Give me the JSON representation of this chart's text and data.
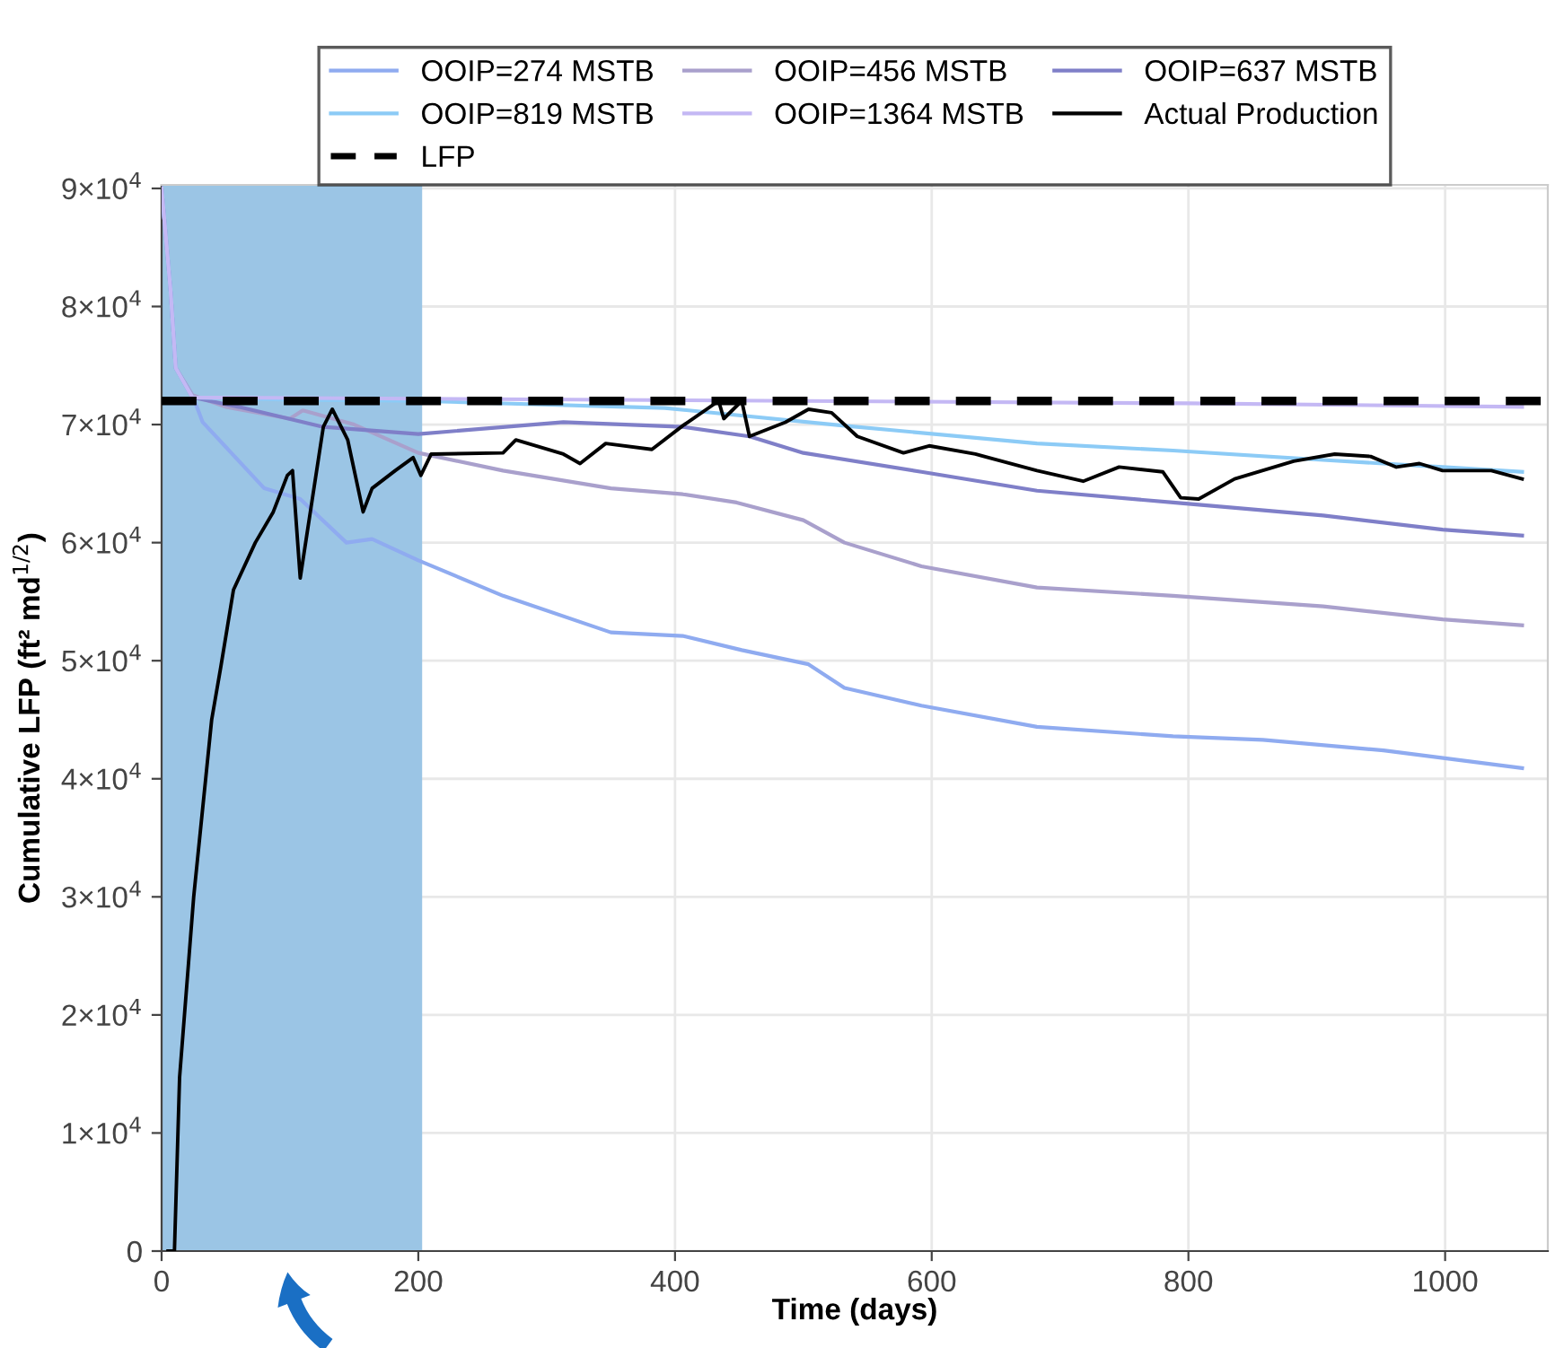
{
  "chart_data": {
    "type": "line",
    "xlabel": "Time (days)",
    "ylabel": "Cumulative LFP (ft² md$^{1/2}$)",
    "xlim": [
      0,
      1080
    ],
    "xticks": [
      0,
      200,
      400,
      600,
      800,
      1000
    ],
    "ylim": [
      0,
      90300
    ],
    "yticks": [
      0,
      {
        "value": 10000,
        "label": "1×10$^{4}$"
      },
      {
        "value": 20000,
        "label": "2×10$^{4}$"
      },
      {
        "value": 30000,
        "label": "3×10$^{4}$"
      },
      {
        "value": 40000,
        "label": "4×10$^{4}$"
      },
      {
        "value": 50000,
        "label": "5×10$^{4}$"
      },
      {
        "value": 60000,
        "label": "6×10$^{4}$"
      },
      {
        "value": 70000,
        "label": "7×10$^{4}$"
      },
      {
        "value": 80000,
        "label": "8×10$^{4}$"
      },
      {
        "value": 90000,
        "label": "9×10$^{4}$"
      }
    ],
    "grid": true,
    "legend": "top",
    "marker": "none",
    "line_style": "solid",
    "bands": [
      {
        "axis": "x",
        "from": 0,
        "to": 203,
        "color": "#9bc5e5"
      }
    ],
    "ref_lines": [
      {
        "axis": "y",
        "value": 72000,
        "label": "LFP",
        "color": "#000000",
        "line_style": "dashed"
      }
    ],
    "series": [
      {
        "name": "OOIP=274 MSTB",
        "color": "#8fabf0",
        "x": [
          0,
          7,
          11,
          24,
          32,
          80,
          108,
          144,
          164,
          200,
          266,
          350,
          406,
          452,
          504,
          532,
          592,
          682,
          788,
          858,
          952,
          1060
        ],
        "values": [
          90000,
          81300,
          74800,
          72500,
          70200,
          64600,
          63700,
          60000,
          60300,
          58500,
          55500,
          52400,
          52100,
          50900,
          49700,
          47700,
          46200,
          44400,
          43600,
          43300,
          42400,
          40900
        ]
      },
      {
        "name": "OOIP=456 MSTB",
        "color": "#a9a0cc",
        "x": [
          0,
          7,
          11,
          24,
          50,
          100,
          110,
          150,
          200,
          266,
          350,
          406,
          448,
          500,
          532,
          592,
          682,
          788,
          905,
          998,
          1060
        ],
        "values": [
          90000,
          81300,
          74800,
          72500,
          71500,
          70500,
          71200,
          70000,
          67600,
          66100,
          64600,
          64100,
          63400,
          61900,
          60000,
          58000,
          56200,
          55500,
          54600,
          53500,
          53000
        ]
      },
      {
        "name": "OOIP=637 MSTB",
        "color": "#7f7fc8",
        "x": [
          0,
          7,
          11,
          24,
          60,
          126,
          200,
          313,
          406,
          458,
          500,
          592,
          682,
          788,
          905,
          998,
          1060
        ],
        "values": [
          90000,
          81300,
          74800,
          72300,
          71500,
          69800,
          69200,
          70200,
          69800,
          69000,
          67600,
          66000,
          64400,
          63400,
          62300,
          61100,
          60600
        ]
      },
      {
        "name": "OOIP=819 MSTB",
        "color": "#8ccbf6",
        "x": [
          0,
          7,
          11,
          24,
          100,
          200,
          392,
          532,
          682,
          788,
          905,
          998,
          1060
        ],
        "values": [
          90000,
          81300,
          74800,
          72300,
          72100,
          72000,
          71400,
          69900,
          68400,
          67800,
          67000,
          66400,
          66000
        ]
      },
      {
        "name": "OOIP=1364 MSTB",
        "color": "#c4b8f4",
        "x": [
          0,
          7,
          11,
          24,
          500,
          800,
          1060
        ],
        "values": [
          90000,
          81300,
          74800,
          72300,
          72000,
          71800,
          71500
        ]
      },
      {
        "name": "Actual Production",
        "color": "#000000",
        "x": [
          5,
          10,
          14,
          25,
          39,
          46,
          56,
          73,
          87,
          98,
          102,
          108,
          126,
          133,
          145,
          157,
          164,
          182,
          196,
          202,
          210,
          266,
          276,
          313,
          326,
          346,
          382,
          406,
          434,
          438,
          452,
          458,
          486,
          504,
          522,
          542,
          578,
          598,
          634,
          682,
          718,
          746,
          780,
          794,
          808,
          836,
          882,
          914,
          942,
          962,
          980,
          998,
          1036,
          1060
        ],
        "values": [
          0,
          0,
          14700,
          30000,
          45000,
          49400,
          56000,
          60000,
          62600,
          65700,
          66100,
          57000,
          69800,
          71300,
          68700,
          62600,
          64600,
          66100,
          67200,
          65700,
          67500,
          67600,
          68700,
          67500,
          66700,
          68400,
          67900,
          69900,
          72000,
          70500,
          72000,
          69000,
          70200,
          71300,
          71000,
          69000,
          67600,
          68200,
          67500,
          66100,
          65200,
          66400,
          66000,
          63800,
          63700,
          65400,
          66900,
          67500,
          67300,
          66400,
          66700,
          66100,
          66100,
          65400
        ]
      }
    ]
  }
}
